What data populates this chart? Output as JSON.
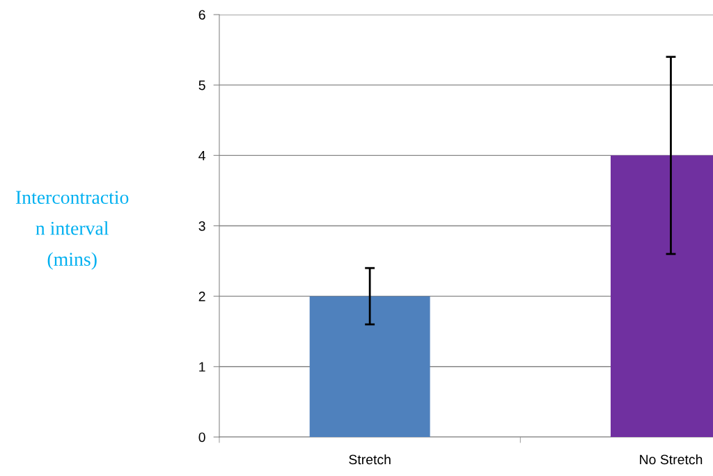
{
  "chart_data": {
    "type": "bar",
    "categories": [
      "Stretch",
      "No Stretch"
    ],
    "values": [
      2,
      4
    ],
    "colors": [
      "#4f81bd",
      "#7030a0"
    ],
    "errors": [
      0.4,
      1.4
    ],
    "ylabel": "Intercontractio\nn interval\n(mins)",
    "ylim": [
      0,
      6
    ],
    "yticks": [
      0,
      1,
      2,
      3,
      4,
      5,
      6
    ],
    "grid": "y",
    "legend": false
  }
}
